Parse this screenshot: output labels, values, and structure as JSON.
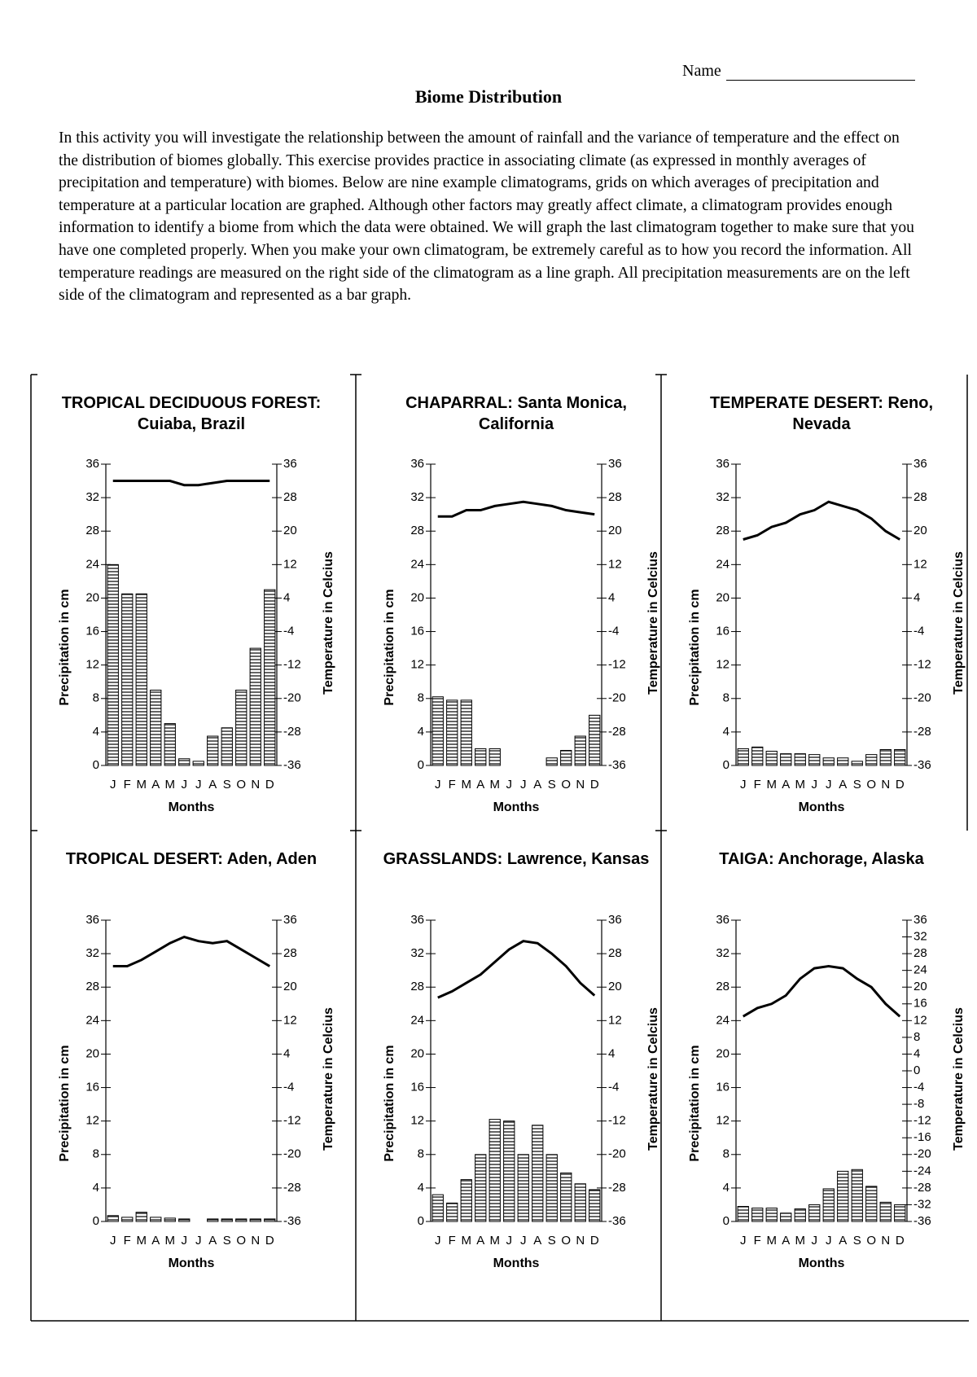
{
  "header": {
    "name_label": "Name",
    "title": "Biome Distribution"
  },
  "intro": "In this activity you will investigate the relationship between the amount of rainfall and the variance of temperature and the effect on the distribution of biomes globally. This exercise provides practice in associating climate (as expressed in monthly averages of precipitation and temperature) with biomes. Below are nine example climatograms, grids on which averages of precipitation and temperature at a particular location are graphed.  Although other factors may greatly affect climate, a climatogram provides enough information to identify a biome from which the data were obtained. We will graph the last climatogram together to make sure that you have one completed properly.   When you make your own climatogram, be extremely careful as to how you record the information. All temperature readings are measured on the right side of the climatogram as a line graph.  All precipitation measurements are on the left side of the climatogram and represented as a bar graph.",
  "chart_data": [
    {
      "type": "climatogram",
      "title": "TROPICAL DECIDUOUS FOREST: Cuiaba, Brazil",
      "xlabel": "Months",
      "ylabel": "Precipitation in cm",
      "y2label": "Temperature in Celcius",
      "categories": [
        "J",
        "F",
        "M",
        "A",
        "M",
        "J",
        "J",
        "A",
        "S",
        "O",
        "N",
        "D"
      ],
      "series": [
        {
          "type": "bar",
          "values": [
            24,
            20.5,
            20.5,
            9,
            5,
            0.8,
            0.5,
            3.5,
            4.5,
            9,
            14,
            21
          ]
        },
        {
          "type": "line",
          "axis": "y2",
          "values": [
            32,
            32,
            32,
            32,
            32,
            31,
            31,
            31.5,
            32,
            32,
            32,
            32
          ]
        }
      ],
      "ylim": [
        0,
        36
      ],
      "yticks": [
        0,
        4,
        8,
        12,
        16,
        20,
        24,
        28,
        32,
        36
      ],
      "y2lim": [
        -36,
        36
      ],
      "y2ticks": [
        -36,
        -28,
        -20,
        -12,
        -4,
        4,
        12,
        20,
        28,
        36
      ]
    },
    {
      "type": "climatogram",
      "title": "CHAPARRAL: Santa Monica, California",
      "xlabel": "Months",
      "ylabel": "Precipitation in cm",
      "y2label": "Temperature in Celcius",
      "categories": [
        "J",
        "F",
        "M",
        "A",
        "M",
        "J",
        "J",
        "A",
        "S",
        "O",
        "N",
        "D"
      ],
      "series": [
        {
          "type": "bar",
          "values": [
            8.2,
            7.8,
            7.8,
            2,
            2,
            0,
            0,
            0,
            0.9,
            1.8,
            3.5,
            6
          ]
        },
        {
          "type": "line",
          "axis": "y2",
          "values": [
            23.5,
            23.5,
            25,
            25,
            26,
            26.5,
            27,
            26.5,
            26,
            25,
            24.5,
            24
          ]
        }
      ],
      "ylim": [
        0,
        36
      ],
      "yticks": [
        0,
        4,
        8,
        12,
        16,
        20,
        24,
        28,
        32,
        36
      ],
      "y2lim": [
        -36,
        36
      ],
      "y2ticks": [
        -36,
        -28,
        -20,
        -12,
        -4,
        4,
        12,
        20,
        28,
        36
      ]
    },
    {
      "type": "climatogram",
      "title": "TEMPERATE DESERT: Reno, Nevada",
      "xlabel": "Months",
      "ylabel": "Precipitation in cm",
      "y2label": "Temperature in Celcius",
      "categories": [
        "J",
        "F",
        "M",
        "A",
        "M",
        "J",
        "J",
        "A",
        "S",
        "O",
        "N",
        "D"
      ],
      "series": [
        {
          "type": "bar",
          "values": [
            2,
            2.2,
            1.7,
            1.4,
            1.4,
            1.3,
            0.9,
            0.9,
            0.5,
            1.3,
            1.9,
            1.9
          ]
        },
        {
          "type": "line",
          "axis": "y2",
          "values": [
            18,
            19,
            21,
            22,
            24,
            25,
            27,
            26,
            25,
            23,
            20,
            18
          ]
        }
      ],
      "ylim": [
        0,
        36
      ],
      "yticks": [
        0,
        4,
        8,
        12,
        16,
        20,
        24,
        28,
        32,
        36
      ],
      "y2lim": [
        -36,
        36
      ],
      "y2ticks": [
        -36,
        -28,
        -20,
        -12,
        -4,
        4,
        12,
        20,
        28,
        36
      ]
    },
    {
      "type": "climatogram",
      "title": "TROPICAL DESERT: Aden, Aden",
      "xlabel": "Months",
      "ylabel": "Precipitation in cm",
      "y2label": "Temperature in Celcius",
      "categories": [
        "J",
        "F",
        "M",
        "A",
        "M",
        "J",
        "J",
        "A",
        "S",
        "O",
        "N",
        "D"
      ],
      "series": [
        {
          "type": "bar",
          "values": [
            0.7,
            0.5,
            1.1,
            0.5,
            0.4,
            0.3,
            0,
            0.3,
            0.3,
            0.3,
            0.3,
            0.3
          ]
        },
        {
          "type": "line",
          "axis": "y2",
          "values": [
            25,
            25,
            26.5,
            28.5,
            30.5,
            32,
            31,
            30.5,
            31,
            29,
            27,
            25
          ]
        }
      ],
      "ylim": [
        0,
        36
      ],
      "yticks": [
        0,
        4,
        8,
        12,
        16,
        20,
        24,
        28,
        32,
        36
      ],
      "y2lim": [
        -36,
        36
      ],
      "y2ticks": [
        -36,
        -28,
        -20,
        -12,
        -4,
        4,
        12,
        20,
        28,
        36
      ]
    },
    {
      "type": "climatogram",
      "title": "GRASSLANDS: Lawrence, Kansas",
      "xlabel": "Months",
      "ylabel": "Precipitation in cm",
      "y2label": "Temperature in Celcius",
      "categories": [
        "J",
        "F",
        "M",
        "A",
        "M",
        "J",
        "J",
        "A",
        "S",
        "O",
        "N",
        "D"
      ],
      "series": [
        {
          "type": "bar",
          "values": [
            3.2,
            2.2,
            5,
            8,
            12.2,
            12,
            8,
            11.5,
            8,
            5.8,
            4.5,
            3.8
          ]
        },
        {
          "type": "line",
          "axis": "y2",
          "values": [
            17.5,
            19,
            21,
            23,
            26,
            29,
            31,
            30.5,
            28,
            25,
            21,
            18
          ]
        }
      ],
      "ylim": [
        0,
        36
      ],
      "yticks": [
        0,
        4,
        8,
        12,
        16,
        20,
        24,
        28,
        32,
        36
      ],
      "y2lim": [
        -36,
        36
      ],
      "y2ticks": [
        -36,
        -28,
        -20,
        -12,
        -4,
        4,
        12,
        20,
        28,
        36
      ]
    },
    {
      "type": "climatogram",
      "title": "TAIGA: Anchorage, Alaska",
      "xlabel": "Months",
      "ylabel": "Precipitation in cm",
      "y2label": "Temperature in Celcius",
      "categories": [
        "J",
        "F",
        "M",
        "A",
        "M",
        "J",
        "J",
        "A",
        "S",
        "O",
        "N",
        "D"
      ],
      "series": [
        {
          "type": "bar",
          "values": [
            1.8,
            1.6,
            1.6,
            1,
            1.5,
            2,
            3.9,
            6,
            6.2,
            4.2,
            2.3,
            2
          ]
        },
        {
          "type": "line",
          "axis": "y2",
          "values": [
            13,
            15,
            16,
            18,
            22,
            24.5,
            25,
            24.5,
            22,
            20,
            16,
            13
          ]
        }
      ],
      "ylim": [
        0,
        36
      ],
      "yticks": [
        0,
        4,
        8,
        12,
        16,
        20,
        24,
        28,
        32,
        36
      ],
      "y2lim": [
        -36,
        36
      ],
      "y2ticks": [
        -36,
        -32,
        -28,
        -24,
        -20,
        -16,
        -12,
        -8,
        -4,
        0,
        4,
        8,
        12,
        16,
        20,
        24,
        28,
        32,
        36
      ]
    }
  ]
}
